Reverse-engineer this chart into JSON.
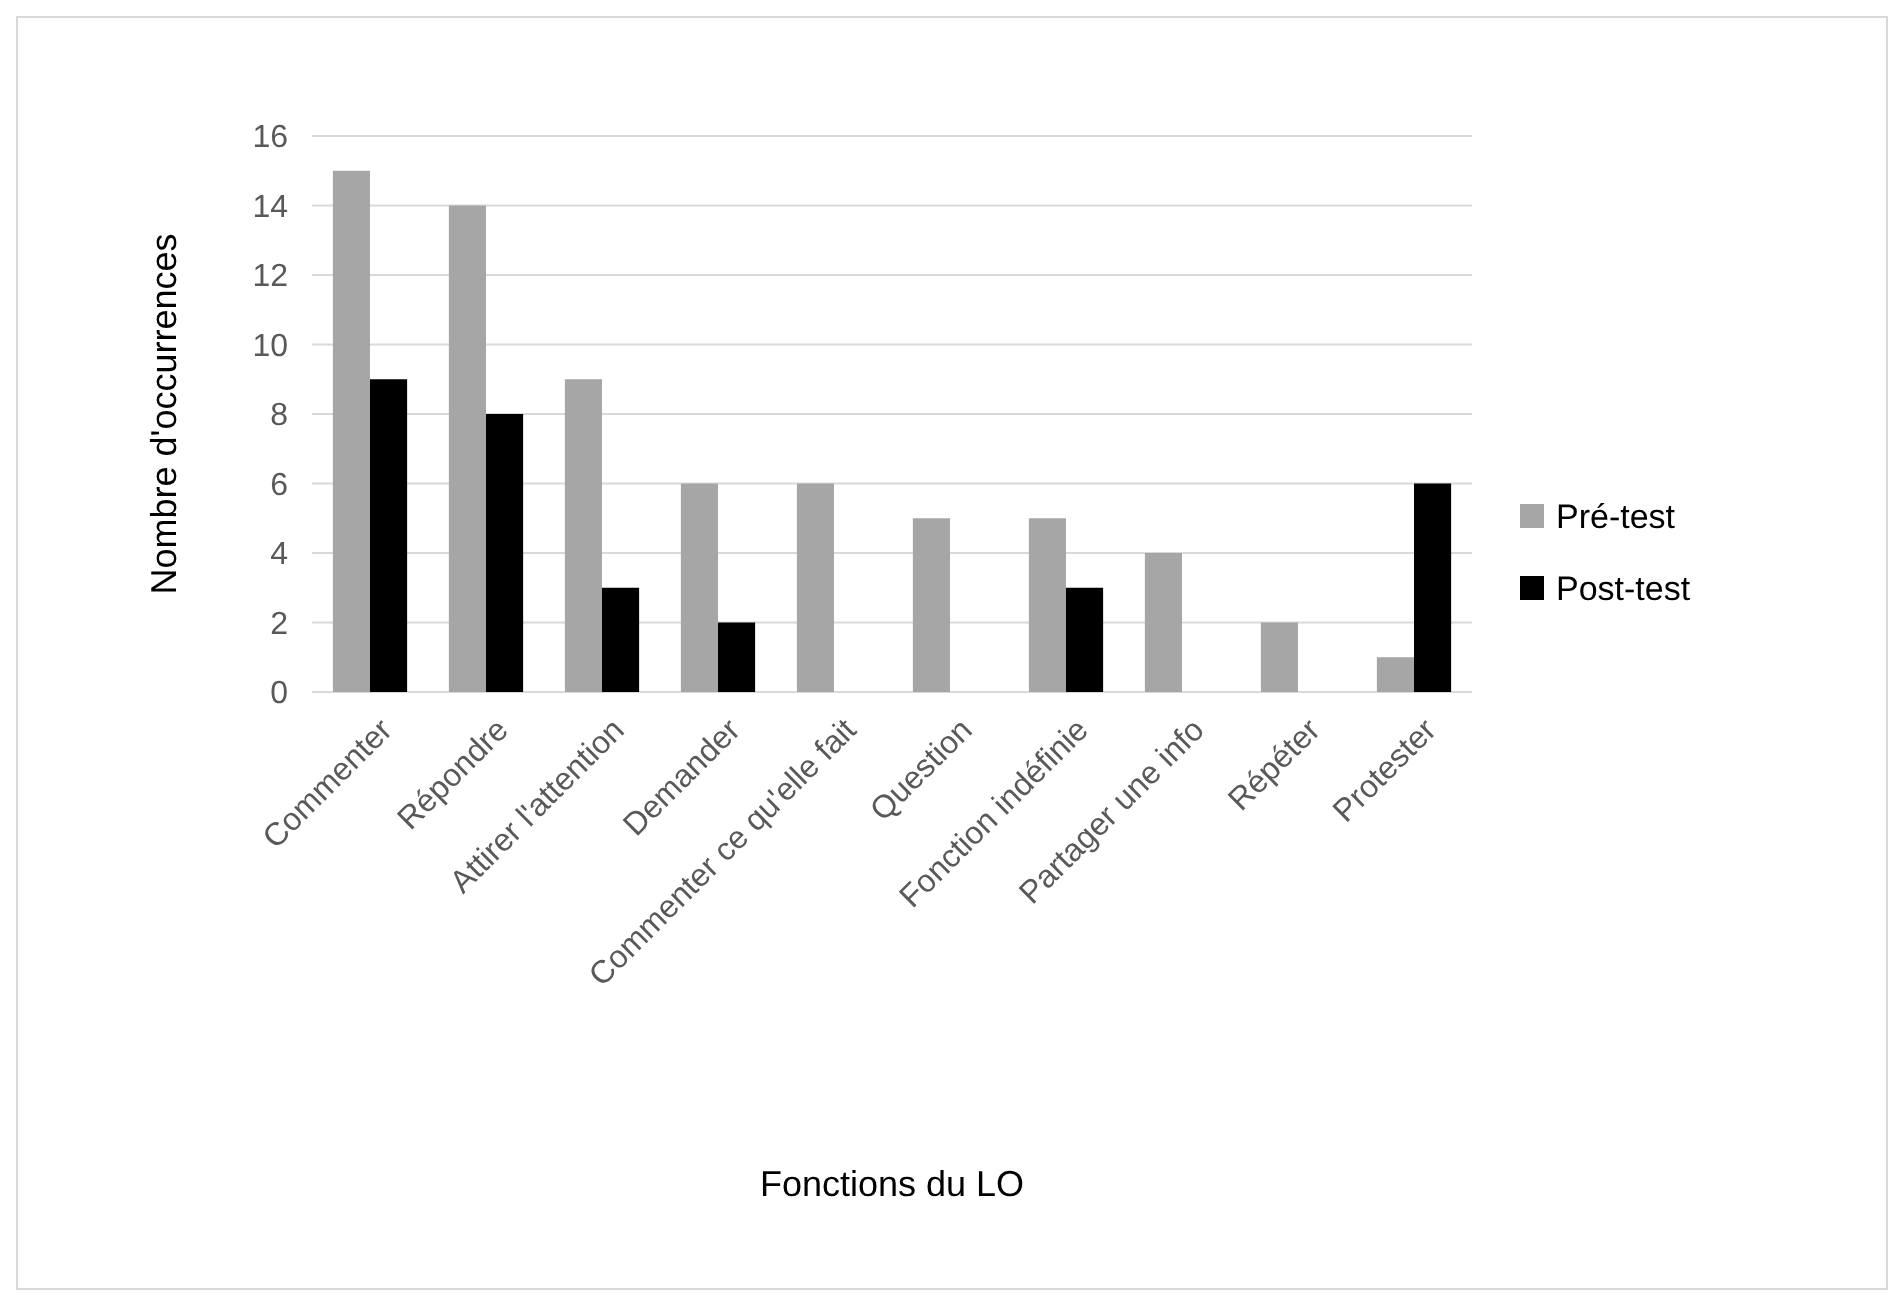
{
  "chart_data": {
    "type": "bar",
    "xlabel": "Fonctions du LO",
    "ylabel": "Nombre d'occurrences",
    "categories": [
      "Commenter",
      "Répondre",
      "Attirer l'attention",
      "Demander",
      "Commenter ce qu'elle fait",
      "Question",
      "Fonction indéfinie",
      "Partager une info",
      "Répéter",
      "Protester"
    ],
    "series": [
      {
        "name": "Pré-test",
        "color": "#a6a6a6",
        "values": [
          15,
          14,
          9,
          6,
          6,
          5,
          5,
          4,
          2,
          1
        ]
      },
      {
        "name": "Post-test",
        "color": "#000000",
        "values": [
          9,
          8,
          3,
          2,
          null,
          null,
          3,
          null,
          null,
          6
        ]
      }
    ],
    "ylim": [
      0,
      16
    ],
    "yticks": [
      0,
      2,
      4,
      6,
      8,
      10,
      12,
      14,
      16
    ],
    "grid": "y",
    "legend": "right"
  }
}
